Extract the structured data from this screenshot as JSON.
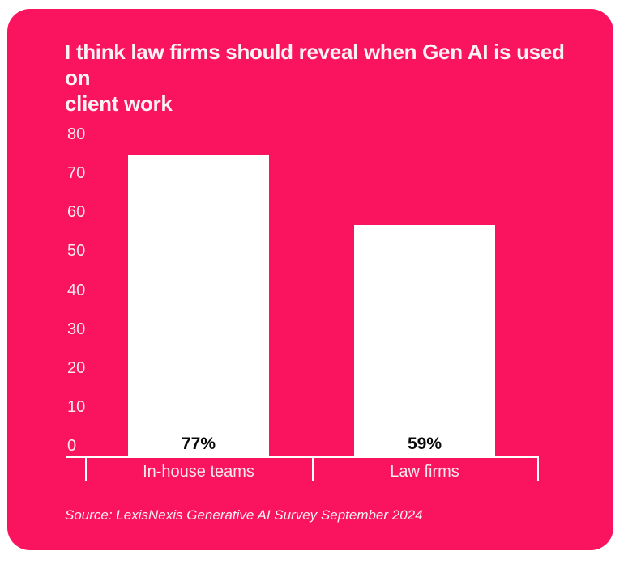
{
  "card": {
    "title_lines": {
      "line1": "I think law firms should reveal when Gen AI is used on",
      "line2": "client work"
    },
    "source": "Source: LexisNexis Generative AI Survey September 2024"
  },
  "colors": {
    "page_bg": "#FFFFFF",
    "card_bg": "#FA145F",
    "bar_fill": "#FFFFFF",
    "title_text": "#FAF2F5",
    "axis_label_text": "#F9E9EF",
    "value_label_text": "#0A0A0A",
    "axis_line": "#FFFFFF"
  },
  "chart_data": {
    "type": "bar",
    "title": "I think law firms should reveal when Gen AI is used on client work",
    "categories": [
      "In-house teams",
      "Law firms"
    ],
    "values": [
      77,
      59
    ],
    "value_labels": [
      "77%",
      "59%"
    ],
    "xlabel": "",
    "ylabel": "",
    "ylim": [
      0,
      80
    ],
    "yticks": [
      80,
      70,
      60,
      50,
      40,
      30,
      20,
      10,
      0
    ],
    "grid": false,
    "legend": false,
    "bar_color": "#FFFFFF",
    "value_label_position": "inside-bottom",
    "source": "Source: LexisNexis Generative AI Survey September 2024"
  }
}
